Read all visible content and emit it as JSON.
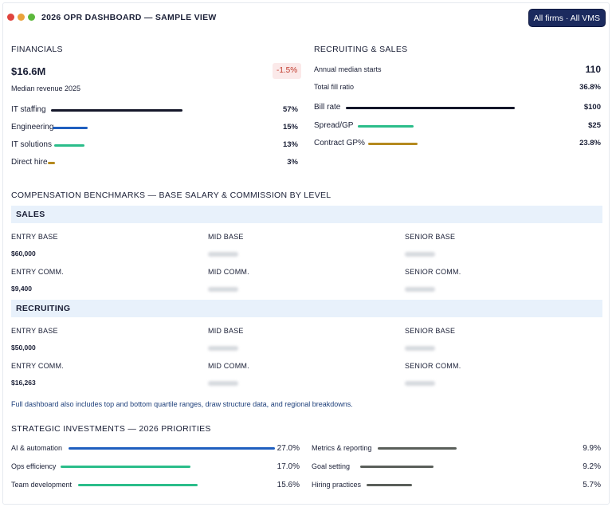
{
  "window": {
    "title": "2026 OPR DASHBOARD — SAMPLE VIEW",
    "filter_label": "All firms · All VMS",
    "dots": [
      "#e0443e",
      "#e9a23b",
      "#5cb83c"
    ]
  },
  "financials": {
    "heading": "FINANCIALS",
    "revenue": "$16.6M",
    "revenue_label": "Median revenue 2025",
    "change": "-1.5%",
    "items": [
      {
        "label": "IT staffing",
        "value": "57%",
        "fraction": 0.57,
        "color": "#14172a"
      },
      {
        "label": "Engineering",
        "value": "15%",
        "fraction": 0.15,
        "color": "#1f5fbf"
      },
      {
        "label": "IT solutions",
        "value": "13%",
        "fraction": 0.13,
        "color": "#2bbd8a"
      },
      {
        "label": "Direct hire",
        "value": "3%",
        "fraction": 0.03,
        "color": "#b58a1f"
      }
    ]
  },
  "recruiting": {
    "heading": "RECRUITING & SALES",
    "starts_label": "Annual median starts",
    "starts_value": "110",
    "fill_label": "Total fill ratio",
    "fill_value": "36.8%",
    "items": [
      {
        "label": "Bill rate",
        "value": "$100",
        "fraction": 1.0,
        "color": "#14172a"
      },
      {
        "label": "Spread/GP",
        "value": "$25",
        "fraction": 0.25,
        "color": "#2bbd8a"
      },
      {
        "label": "Contract GP%",
        "value": "23.8%",
        "fraction": 0.238,
        "color": "#b58a1f"
      }
    ]
  },
  "compensation": {
    "heading": "COMPENSATION BENCHMARKS — BASE SALARY & COMMISSION BY LEVEL",
    "groups": [
      {
        "name": "SALES",
        "rows": [
          {
            "h": [
              "ENTRY BASE",
              "MID BASE",
              "SENIOR BASE"
            ],
            "v": "$60,000"
          },
          {
            "h": [
              "ENTRY COMM.",
              "MID COMM.",
              "SENIOR COMM."
            ],
            "v": "$9,400"
          }
        ]
      },
      {
        "name": "RECRUITING",
        "rows": [
          {
            "h": [
              "ENTRY BASE",
              "MID BASE",
              "SENIOR BASE"
            ],
            "v": "$50,000"
          },
          {
            "h": [
              "ENTRY COMM.",
              "MID COMM.",
              "SENIOR COMM."
            ],
            "v": "$16,263"
          }
        ]
      }
    ],
    "note": "Full dashboard also includes top and bottom quartile ranges, draw structure data, and regional breakdowns."
  },
  "strategic": {
    "heading": "STRATEGIC INVESTMENTS — 2026 PRIORITIES",
    "left": [
      {
        "label": "AI & automation",
        "value": "27.0%",
        "fraction": 0.27,
        "color": "#1f5fbf"
      },
      {
        "label": "Ops efficiency",
        "value": "17.0%",
        "fraction": 0.17,
        "color": "#2bbd8a"
      },
      {
        "label": "Team development",
        "value": "15.6%",
        "fraction": 0.156,
        "color": "#2bbd8a"
      }
    ],
    "right": [
      {
        "label": "Metrics & reporting",
        "value": "9.9%",
        "fraction": 0.099,
        "color": "#5a5f5a"
      },
      {
        "label": "Goal setting",
        "value": "9.2%",
        "fraction": 0.092,
        "color": "#5a5f5a"
      },
      {
        "label": "Hiring practices",
        "value": "5.7%",
        "fraction": 0.057,
        "color": "#5a5f5a"
      }
    ]
  }
}
